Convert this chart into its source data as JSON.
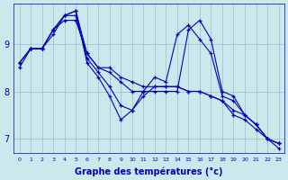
{
  "xlabel": "Graphe des températures (°c)",
  "background_color": "#cce8ec",
  "line_color": "#0000bb",
  "grid_color": "#99bbcc",
  "xlim": [
    -0.5,
    23.5
  ],
  "ylim": [
    6.7,
    9.85
  ],
  "yticks": [
    7,
    8,
    9
  ],
  "xticks": [
    0,
    1,
    2,
    3,
    4,
    5,
    6,
    7,
    8,
    9,
    10,
    11,
    12,
    13,
    14,
    15,
    16,
    17,
    18,
    19,
    20,
    21,
    22,
    23
  ],
  "series": [
    [
      8.6,
      8.9,
      8.9,
      9.3,
      9.6,
      9.7,
      8.8,
      8.5,
      8.5,
      8.3,
      8.2,
      8.1,
      8.1,
      8.1,
      8.1,
      8.0,
      8.0,
      7.9,
      7.8,
      7.6,
      7.5,
      7.3,
      7.0,
      6.9
    ],
    [
      8.6,
      8.9,
      8.9,
      9.3,
      9.5,
      9.5,
      8.8,
      8.5,
      8.4,
      8.2,
      8.0,
      8.0,
      8.0,
      8.0,
      8.0,
      9.3,
      9.5,
      9.1,
      8.0,
      7.9,
      7.5,
      7.3,
      7.0,
      6.9
    ],
    [
      8.6,
      8.9,
      8.9,
      9.2,
      9.6,
      9.7,
      8.6,
      8.3,
      7.9,
      7.4,
      7.6,
      8.0,
      8.3,
      8.2,
      9.2,
      9.4,
      9.1,
      8.8,
      7.9,
      7.8,
      7.5,
      7.3,
      7.0,
      6.9
    ],
    [
      8.5,
      8.9,
      8.9,
      9.3,
      9.6,
      9.6,
      8.7,
      8.4,
      8.1,
      7.7,
      7.6,
      7.9,
      8.1,
      8.1,
      8.1,
      8.0,
      8.0,
      7.9,
      7.8,
      7.5,
      7.4,
      7.2,
      7.0,
      6.8
    ]
  ]
}
